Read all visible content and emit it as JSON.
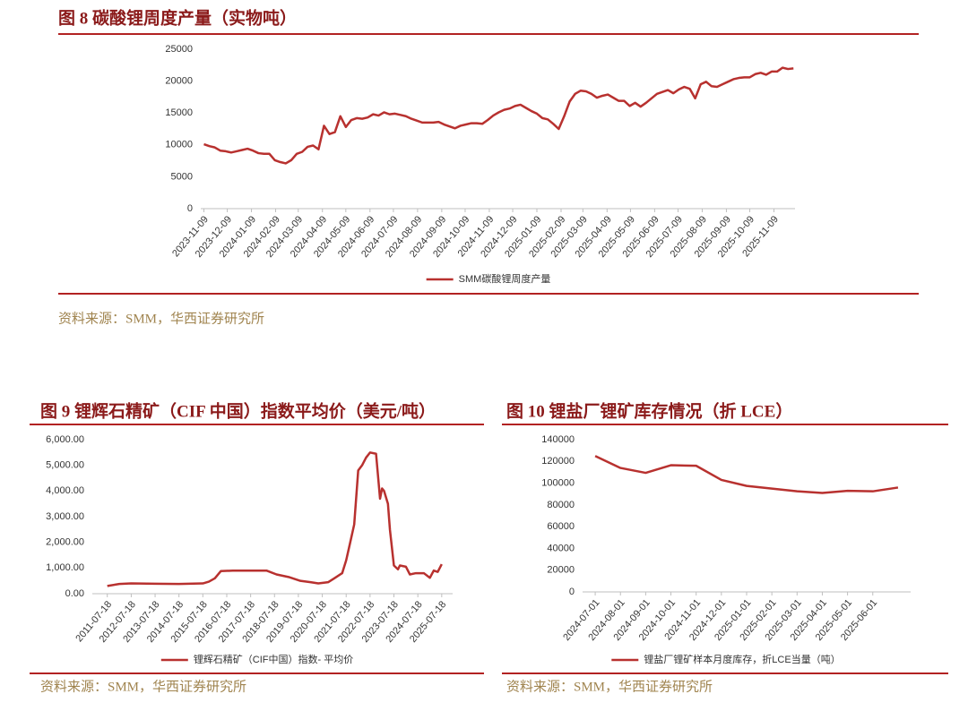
{
  "chart_data": [
    {
      "type": "line",
      "title": "图 8 碳酸锂周度产量（实物吨）",
      "source": "资料来源：SMM，华西证券研究所",
      "x": [
        "2023-11-09",
        "2023-11-16",
        "2023-11-23",
        "2023-11-30",
        "2023-12-07",
        "2023-12-14",
        "2023-12-21",
        "2023-12-28",
        "2024-01-04",
        "2024-01-11",
        "2024-01-18",
        "2024-01-25",
        "2024-02-01",
        "2024-02-08",
        "2024-02-15",
        "2024-02-22",
        "2024-02-29",
        "2024-03-07",
        "2024-03-14",
        "2024-03-21",
        "2024-03-28",
        "2024-04-04",
        "2024-04-11",
        "2024-04-18",
        "2024-04-25",
        "2024-05-02",
        "2024-05-09",
        "2024-05-16",
        "2024-05-23",
        "2024-05-30",
        "2024-06-06",
        "2024-06-13",
        "2024-06-20",
        "2024-06-27",
        "2024-07-04",
        "2024-07-11",
        "2024-07-18",
        "2024-07-25",
        "2024-08-01",
        "2024-08-08",
        "2024-08-15",
        "2024-08-22",
        "2024-08-29",
        "2024-09-05",
        "2024-09-12",
        "2024-09-19",
        "2024-09-26",
        "2024-10-03",
        "2024-10-10",
        "2024-10-17",
        "2024-10-24",
        "2024-10-31",
        "2024-11-07",
        "2024-11-14",
        "2024-11-21",
        "2024-11-28",
        "2024-12-05",
        "2024-12-12",
        "2024-12-19",
        "2024-12-26",
        "2025-01-02",
        "2025-01-09",
        "2025-01-16",
        "2025-01-23",
        "2025-01-30",
        "2025-02-06",
        "2025-02-13",
        "2025-02-20",
        "2025-02-27",
        "2025-03-06",
        "2025-03-13",
        "2025-03-20",
        "2025-03-27",
        "2025-04-03",
        "2025-04-10",
        "2025-04-17",
        "2025-04-24",
        "2025-05-01",
        "2025-05-08",
        "2025-05-15",
        "2025-05-22",
        "2025-05-29",
        "2025-06-05",
        "2025-06-12",
        "2025-06-19",
        "2025-06-26",
        "2025-07-03",
        "2025-07-10",
        "2025-07-17",
        "2025-07-24",
        "2025-07-31",
        "2025-08-07",
        "2025-08-14",
        "2025-08-21",
        "2025-08-28",
        "2025-09-04",
        "2025-09-11",
        "2025-09-18",
        "2025-09-25",
        "2025-10-02",
        "2025-10-09",
        "2025-10-16",
        "2025-10-23",
        "2025-10-30",
        "2025-11-06",
        "2025-11-13",
        "2025-11-20",
        "2025-11-27",
        "2025-12-04"
      ],
      "series": [
        {
          "name": "SMM碳酸锂周度产量",
          "color": "#b8312f",
          "values": [
            10100,
            9800,
            9600,
            9100,
            9000,
            8800,
            9000,
            9200,
            9400,
            9100,
            8700,
            8600,
            8600,
            7600,
            7300,
            7100,
            7600,
            8600,
            8900,
            9700,
            9900,
            9300,
            13000,
            11700,
            12000,
            14500,
            12800,
            13900,
            14200,
            14100,
            14300,
            14800,
            14600,
            15100,
            14800,
            14900,
            14700,
            14500,
            14100,
            13800,
            13500,
            13500,
            13500,
            13600,
            13200,
            12900,
            12600,
            13000,
            13200,
            13400,
            13400,
            13300,
            13900,
            14600,
            15100,
            15500,
            15700,
            16100,
            16300,
            15800,
            15300,
            14900,
            14200,
            14000,
            13300,
            12500,
            14500,
            16800,
            18000,
            18500,
            18400,
            18000,
            17400,
            17700,
            17900,
            17400,
            16900,
            16900,
            16100,
            16600,
            16000,
            16600,
            17300,
            18000,
            18300,
            18600,
            18100,
            18700,
            19100,
            18800,
            17300,
            19500,
            19900,
            19200,
            19100,
            19500,
            19900,
            20300,
            20500,
            20600,
            20600,
            21100,
            21300,
            21000,
            21500,
            21500,
            22100,
            21900,
            22000
          ]
        }
      ],
      "xlim": [
        "2023-11-05",
        "2025-12-06"
      ],
      "xticks": [
        "2023-11-09",
        "2023-12-09",
        "2024-01-09",
        "2024-02-09",
        "2024-03-09",
        "2024-04-09",
        "2024-05-09",
        "2024-06-09",
        "2024-07-09",
        "2024-08-09",
        "2024-09-09",
        "2024-10-09",
        "2024-11-09",
        "2024-12-09",
        "2025-01-09",
        "2025-02-09",
        "2025-03-09",
        "2025-04-09",
        "2025-05-09",
        "2025-06-09",
        "2025-07-09",
        "2025-08-09",
        "2025-09-09",
        "2025-10-09",
        "2025-11-09"
      ],
      "ylim": [
        0,
        25000
      ],
      "yticks": [
        0,
        5000,
        10000,
        15000,
        20000,
        25000
      ],
      "legend": "bottom"
    },
    {
      "type": "line",
      "title": "图 9 锂辉石精矿（CIF 中国）指数平均价（美元/吨）",
      "source": "资料来源：SMM，华西证券研究所",
      "x": [
        "2011-07-18",
        "2012-01-18",
        "2012-07-18",
        "2013-07-18",
        "2014-07-18",
        "2015-07-18",
        "2015-10-18",
        "2016-01-18",
        "2016-04-18",
        "2016-10-18",
        "2018-03-18",
        "2018-08-18",
        "2019-02-18",
        "2019-08-18",
        "2020-01-18",
        "2020-05-18",
        "2020-10-18",
        "2021-01-18",
        "2021-05-18",
        "2021-07-18",
        "2021-09-18",
        "2021-11-18",
        "2022-01-18",
        "2022-03-18",
        "2022-05-18",
        "2022-07-18",
        "2022-10-18",
        "2022-12-18",
        "2023-01-18",
        "2023-02-18",
        "2023-04-18",
        "2023-05-18",
        "2023-07-18",
        "2023-09-18",
        "2023-10-18",
        "2024-01-18",
        "2024-03-18",
        "2024-06-18",
        "2024-10-18",
        "2025-01-18",
        "2025-03-18",
        "2025-05-18",
        "2025-07-18"
      ],
      "series": [
        {
          "name": "锂辉石精矿（CIF中国）指数- 平均价",
          "color": "#b8312f",
          "values": [
            300,
            380,
            400,
            390,
            380,
            400,
            470,
            600,
            880,
            900,
            900,
            750,
            650,
            500,
            450,
            400,
            450,
            600,
            800,
            1300,
            2000,
            2700,
            4800,
            5000,
            5300,
            5500,
            5450,
            3700,
            4100,
            4000,
            3500,
            2500,
            1100,
            950,
            1100,
            1050,
            750,
            800,
            800,
            620,
            900,
            850,
            1150
          ]
        }
      ],
      "xlim": [
        "2010-12-01",
        "2026-01-01"
      ],
      "xticks": [
        "2011-07-18",
        "2012-07-18",
        "2013-07-18",
        "2014-07-18",
        "2015-07-18",
        "2016-07-18",
        "2017-07-18",
        "2018-07-18",
        "2019-07-18",
        "2020-07-18",
        "2021-07-18",
        "2022-07-18",
        "2023-07-18",
        "2024-07-18",
        "2025-07-18"
      ],
      "ylim": [
        0,
        6000
      ],
      "yticks": [
        {
          "value": 0,
          "label": "0.00"
        },
        {
          "value": 1000,
          "label": "1,000.00"
        },
        {
          "value": 2000,
          "label": "2,000.00"
        },
        {
          "value": 3000,
          "label": "3,000.00"
        },
        {
          "value": 4000,
          "label": "4,000.00"
        },
        {
          "value": 5000,
          "label": "5,000.00"
        },
        {
          "value": 6000,
          "label": "6,000.00"
        }
      ],
      "legend": "bottom"
    },
    {
      "type": "line",
      "title": "图 10 锂盐厂锂矿库存情况（折 LCE）",
      "source": "资料来源：SMM，华西证券研究所",
      "categories": [
        "2024-07-01",
        "2024-08-01",
        "2024-09-01",
        "2024-10-01",
        "2024-11-01",
        "2024-12-01",
        "2025-01-01",
        "2025-02-01",
        "2025-03-01",
        "2025-04-01",
        "2025-05-01",
        "2025-06-01",
        null
      ],
      "series": [
        {
          "name": "锂盐厂锂矿样本月度库存，折LCE当量（吨）",
          "color": "#b8312f",
          "values": [
            125000,
            114000,
            109500,
            116500,
            116000,
            103000,
            97500,
            95000,
            92500,
            91000,
            93000,
            92500,
            96000
          ]
        }
      ],
      "ylim": [
        0,
        140000
      ],
      "yticks": [
        0,
        20000,
        40000,
        60000,
        80000,
        100000,
        120000,
        140000
      ],
      "legend": "bottom"
    }
  ]
}
